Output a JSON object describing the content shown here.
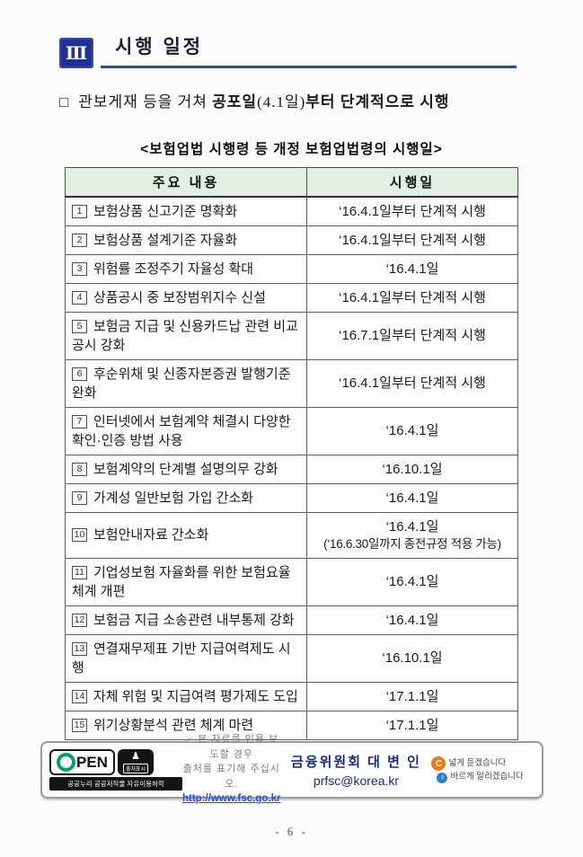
{
  "section": {
    "number": "Ⅲ",
    "title": "시행 일정"
  },
  "intro": {
    "bullet": "□",
    "text_start": "관보게재 등을 거쳐 ",
    "bold_1": "공포일",
    "paren": "(4.1일)",
    "bold_2": "부터 단계적으로 시행"
  },
  "table": {
    "title": "<보험업법 시행령 등 개정 보험업법령의 시행일>",
    "headers": [
      "주요 내용",
      "시행일"
    ],
    "rows": [
      {
        "num": "1",
        "content": "보험상품 신고기준 명확화",
        "date": "‘16.4.1일부터 단계적 시행"
      },
      {
        "num": "2",
        "content": "보험상품 설계기준 자율화",
        "date": "‘16.4.1일부터 단계적 시행"
      },
      {
        "num": "3",
        "content": "위험률 조정주기 자율성 확대",
        "date": "‘16.4.1일"
      },
      {
        "num": "4",
        "content": "상품공시 중 보장범위지수 신설",
        "date": "‘16.4.1일부터 단계적 시행"
      },
      {
        "num": "5",
        "content": "보험금 지급 및 신용카드납 관련 비교 공시 강화",
        "date": "‘16.7.1일부터 단계적 시행"
      },
      {
        "num": "6",
        "content": "후순위채 및 신종자본증권 발행기준 완화",
        "date": "‘16.4.1일부터 단계적 시행"
      },
      {
        "num": "7",
        "content": "인터넷에서 보험계약 체결시 다양한 확인·인증 방법 사용",
        "date": "‘16.4.1일"
      },
      {
        "num": "8",
        "content": "보험계약의 단계별 설명의무 강화",
        "date": "‘16.10.1일"
      },
      {
        "num": "9",
        "content": "가계성 일반보험 가입 간소화",
        "date": "‘16.4.1일"
      },
      {
        "num": "10",
        "content": "보험안내자료 간소화",
        "date": "‘16.4.1일",
        "note": "(‘16.6.30일까지 종전규정 적용 가능)"
      },
      {
        "num": "11",
        "content": "기업성보험 자율화를 위한 보험요율 체계 개편",
        "date": "‘16.4.1일"
      },
      {
        "num": "12",
        "content": "보험금 지급 소송관련 내부통제 강화",
        "date": "‘16.4.1일"
      },
      {
        "num": "13",
        "content": "연결재무제표 기반 지급여력제도 시행",
        "date": "‘16.10.1일"
      },
      {
        "num": "14",
        "content": "자체 위험 및 지급여력 평가제도 도입",
        "date": "‘17.1.1일"
      },
      {
        "num": "15",
        "content": "위기상황분석 관련 체계 마련",
        "date": "‘17.1.1일"
      }
    ]
  },
  "footer": {
    "open_logo": {
      "open_text": "PEN",
      "mark_label": "출처표시",
      "banner": "공공누리 공공저작물 자유이용허락"
    },
    "citation_line1": "☞ 본 자료를 인용 보도할 경우",
    "citation_line2": "출처를 표기해 주십시오.",
    "url": "http://www.fsc.go.kr",
    "org_name": "금융위원회 대 변 인",
    "email": "prfsc@korea.kr",
    "slogan1": "넓게 듣겠습니다",
    "slogan2": "바르게 알리겠습니다"
  },
  "page_number": "- 6 -",
  "colors": {
    "badge_navy": "#22308f",
    "rule_blue": "#2b4ba6",
    "table_header_green": "#e2f0e4",
    "link_blue": "#2b50c8",
    "org_navy": "#1b2d7a",
    "ear_orange": "#f07818",
    "speaker_blue": "#2b7fd4"
  }
}
